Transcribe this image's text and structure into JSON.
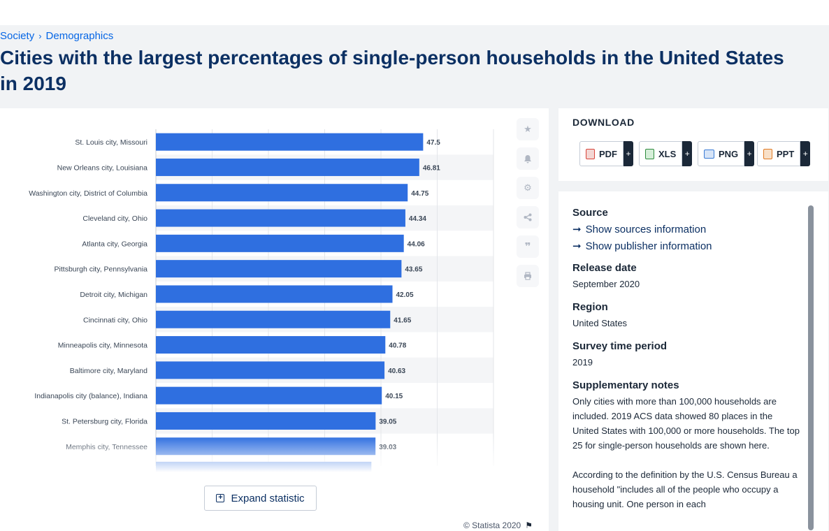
{
  "breadcrumb": [
    "Society",
    "Demographics"
  ],
  "title": "Cities with the largest percentages of single-person households in the United States in 2019",
  "expand_label": "Expand statistic",
  "copyright": "© Statista 2020",
  "download": {
    "title": "DOWNLOAD",
    "formats": [
      {
        "label": "PDF",
        "color": "#d9443a"
      },
      {
        "label": "XLS",
        "color": "#2e8b3e"
      },
      {
        "label": "PNG",
        "color": "#3a7bd5"
      },
      {
        "label": "PPT",
        "color": "#e07b24"
      }
    ],
    "plus": "+"
  },
  "tools": [
    "star-icon",
    "bell-icon",
    "gear-icon",
    "share-icon",
    "quote-icon",
    "print-icon"
  ],
  "info": {
    "source_h": "Source",
    "show_sources": "Show sources information",
    "show_publisher": "Show publisher information",
    "release_h": "Release date",
    "release_v": "September 2020",
    "region_h": "Region",
    "region_v": "United States",
    "survey_h": "Survey time period",
    "survey_v": "2019",
    "notes_h": "Supplementary notes",
    "notes_v1": "Only cities with more than 100,000 households are included. 2019 ACS data showed 80 places in the United States with 100,000 or more households. The top 25 for single-person households are shown here.",
    "notes_v2": "According to the definition by the U.S. Census Bureau a household \"includes all of the people who occupy a housing unit. One person in each"
  },
  "colors": {
    "bar": "#2f6fe0",
    "navy": "#0c3063",
    "link": "#0666e5"
  },
  "chart_data": {
    "type": "bar",
    "orientation": "horizontal",
    "categories": [
      "St. Louis city, Missouri",
      "New Orleans city, Louisiana",
      "Washington city, District of Columbia",
      "Cleveland city, Ohio",
      "Atlanta city, Georgia",
      "Pittsburgh city, Pennsylvania",
      "Detroit city, Michigan",
      "Cincinnati city, Ohio",
      "Minneapolis city, Minnesota",
      "Baltimore city, Maryland",
      "Indianapolis city (balance), Indiana",
      "St. Petersburg city, Florida",
      "Memphis city, Tennessee"
    ],
    "values": [
      47.5,
      46.81,
      44.75,
      44.34,
      44.06,
      43.65,
      42.05,
      41.65,
      40.78,
      40.63,
      40.15,
      39.05,
      39.03
    ],
    "labels": [
      "47.5",
      "46.81",
      "44.75",
      "44.34",
      "44.06",
      "43.65",
      "42.05",
      "41.65",
      "40.78",
      "40.63",
      "40.15",
      "39.05",
      "39.03"
    ],
    "xlim": [
      0,
      60
    ],
    "grid": true
  }
}
